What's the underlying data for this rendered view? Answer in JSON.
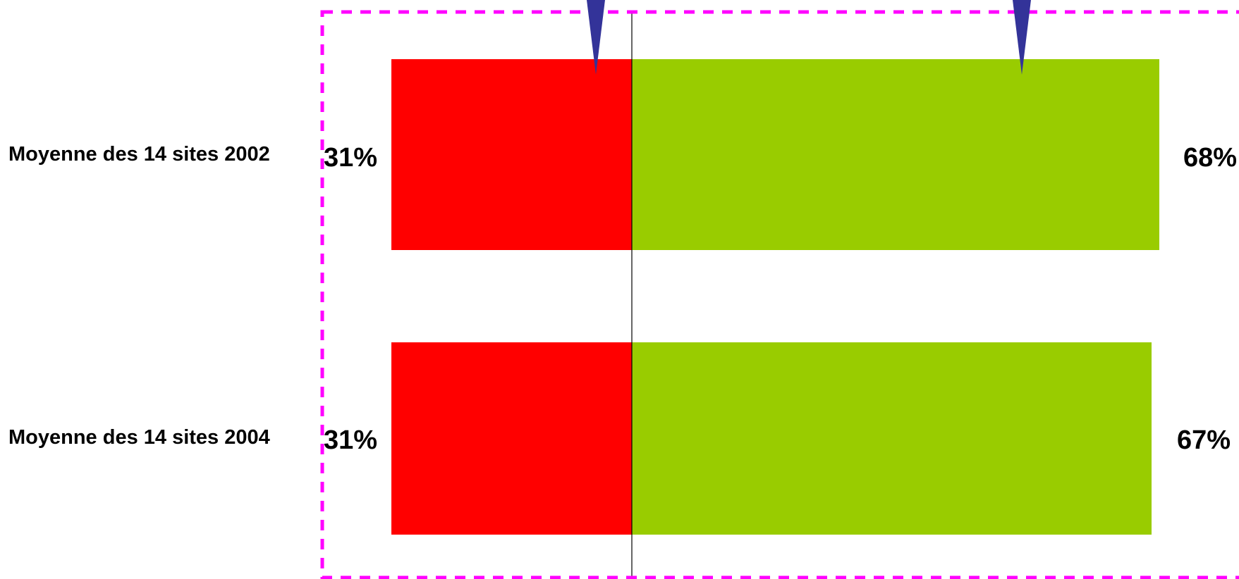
{
  "chart_data": {
    "type": "bar",
    "orientation": "horizontal",
    "stacked": "diverging",
    "categories": [
      "Moyenne des 14 sites 2002",
      "Moyenne des 14 sites 2004"
    ],
    "series": [
      {
        "values": [
          31,
          31
        ],
        "color": "#ff0000",
        "labels": [
          "31%",
          "31%"
        ]
      },
      {
        "values": [
          68,
          67
        ],
        "color": "#99cc00",
        "labels": [
          "68%",
          "67%"
        ]
      }
    ],
    "unit": "%",
    "title": "",
    "xlabel": "",
    "ylabel": "",
    "grid": false,
    "legend": false,
    "frame": {
      "style": "dashed",
      "color": "#ff00ff"
    },
    "markers": {
      "count": 2,
      "shape": "downward-triangle",
      "color": "#333399"
    },
    "zero_line_color": "#000000"
  }
}
